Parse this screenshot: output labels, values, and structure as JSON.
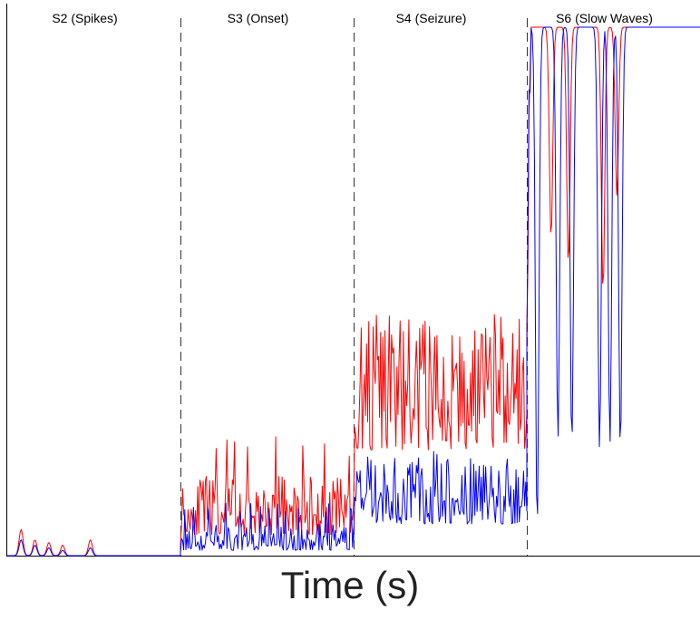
{
  "chart_data": {
    "type": "line",
    "title": "",
    "xlabel": "Time (s)",
    "ylabel": "",
    "grid": false,
    "legend": "none",
    "stages": [
      {
        "label": "S2 (Spikes)",
        "start": 0.0,
        "end": 0.25
      },
      {
        "label": "S3 (Onset)",
        "start": 0.25,
        "end": 0.5
      },
      {
        "label": "S4 (Seizure)",
        "start": 0.5,
        "end": 0.75
      },
      {
        "label": "S6 (Slow Waves)",
        "start": 0.75,
        "end": 1.0
      }
    ],
    "ylim": [
      0,
      1
    ],
    "series": [
      {
        "color": "#ff0000",
        "segments": [
          {
            "stage": 0,
            "mode": "spikes",
            "base": 0.0,
            "peaks": [
              [
                0.02,
                0.05
              ],
              [
                0.04,
                0.03
              ],
              [
                0.06,
                0.025
              ],
              [
                0.08,
                0.02
              ],
              [
                0.12,
                0.03
              ]
            ]
          },
          {
            "stage": 1,
            "mode": "noise",
            "base": 0.04,
            "amp": 0.11,
            "peak": 0.23
          },
          {
            "stage": 2,
            "mode": "noise",
            "base": 0.2,
            "amp": 0.26,
            "peak": 0.45
          },
          {
            "stage": 3,
            "mode": "slow",
            "high": 1.0,
            "dips": [
              [
                0.785,
                0.6
              ],
              [
                0.81,
                0.55
              ],
              [
                0.86,
                0.5
              ],
              [
                0.88,
                0.68
              ]
            ]
          }
        ]
      },
      {
        "color": "#0000ff",
        "segments": [
          {
            "stage": 0,
            "mode": "spikes",
            "base": 0.0,
            "peaks": [
              [
                0.02,
                0.03
              ],
              [
                0.04,
                0.02
              ],
              [
                0.06,
                0.015
              ],
              [
                0.08,
                0.01
              ],
              [
                0.12,
                0.015
              ]
            ]
          },
          {
            "stage": 1,
            "mode": "noise",
            "base": 0.01,
            "amp": 0.05,
            "peak": 0.1
          },
          {
            "stage": 2,
            "mode": "noise",
            "base": 0.06,
            "amp": 0.13,
            "peak": 0.2
          },
          {
            "stage": 3,
            "mode": "slow",
            "high": 1.0,
            "dips": [
              [
                0.765,
                0.05
              ],
              [
                0.795,
                0.22
              ],
              [
                0.815,
                0.21
              ],
              [
                0.855,
                0.2
              ],
              [
                0.87,
                0.21
              ],
              [
                0.885,
                0.2
              ]
            ]
          }
        ]
      }
    ]
  }
}
